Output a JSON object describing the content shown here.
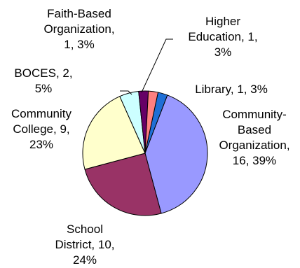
{
  "chart_data": {
    "type": "pie",
    "title": "",
    "legend": "none",
    "slices": [
      {
        "name": "Library",
        "value": 1,
        "percent": "3%",
        "color": "#1f6fd6",
        "label_lines": [
          "Library, 1, 3%"
        ]
      },
      {
        "name": "Community-Based Organization",
        "value": 16,
        "percent": "39%",
        "color": "#9999ff",
        "label_lines": [
          "Community-",
          "Based",
          "Organization,",
          "16, 39%"
        ]
      },
      {
        "name": "School District",
        "value": 10,
        "percent": "24%",
        "color": "#993366",
        "label_lines": [
          "School",
          "District, 10,",
          "24%"
        ]
      },
      {
        "name": "Community College",
        "value": 9,
        "percent": "23%",
        "color": "#ffffcc",
        "label_lines": [
          "Community",
          "College, 9,",
          "23%"
        ]
      },
      {
        "name": "BOCES",
        "value": 2,
        "percent": "5%",
        "color": "#ccffff",
        "label_lines": [
          "BOCES, 2,",
          "5%"
        ]
      },
      {
        "name": "Faith-Based Organization",
        "value": 1,
        "percent": "3%",
        "color": "#660066",
        "label_lines": [
          "Faith-Based",
          "Organization,",
          "1, 3%"
        ]
      },
      {
        "name": "Higher Education",
        "value": 1,
        "percent": "3%",
        "color": "#ff8080",
        "label_lines": [
          "Higher",
          "Education, 1,",
          "3%"
        ]
      }
    ]
  }
}
